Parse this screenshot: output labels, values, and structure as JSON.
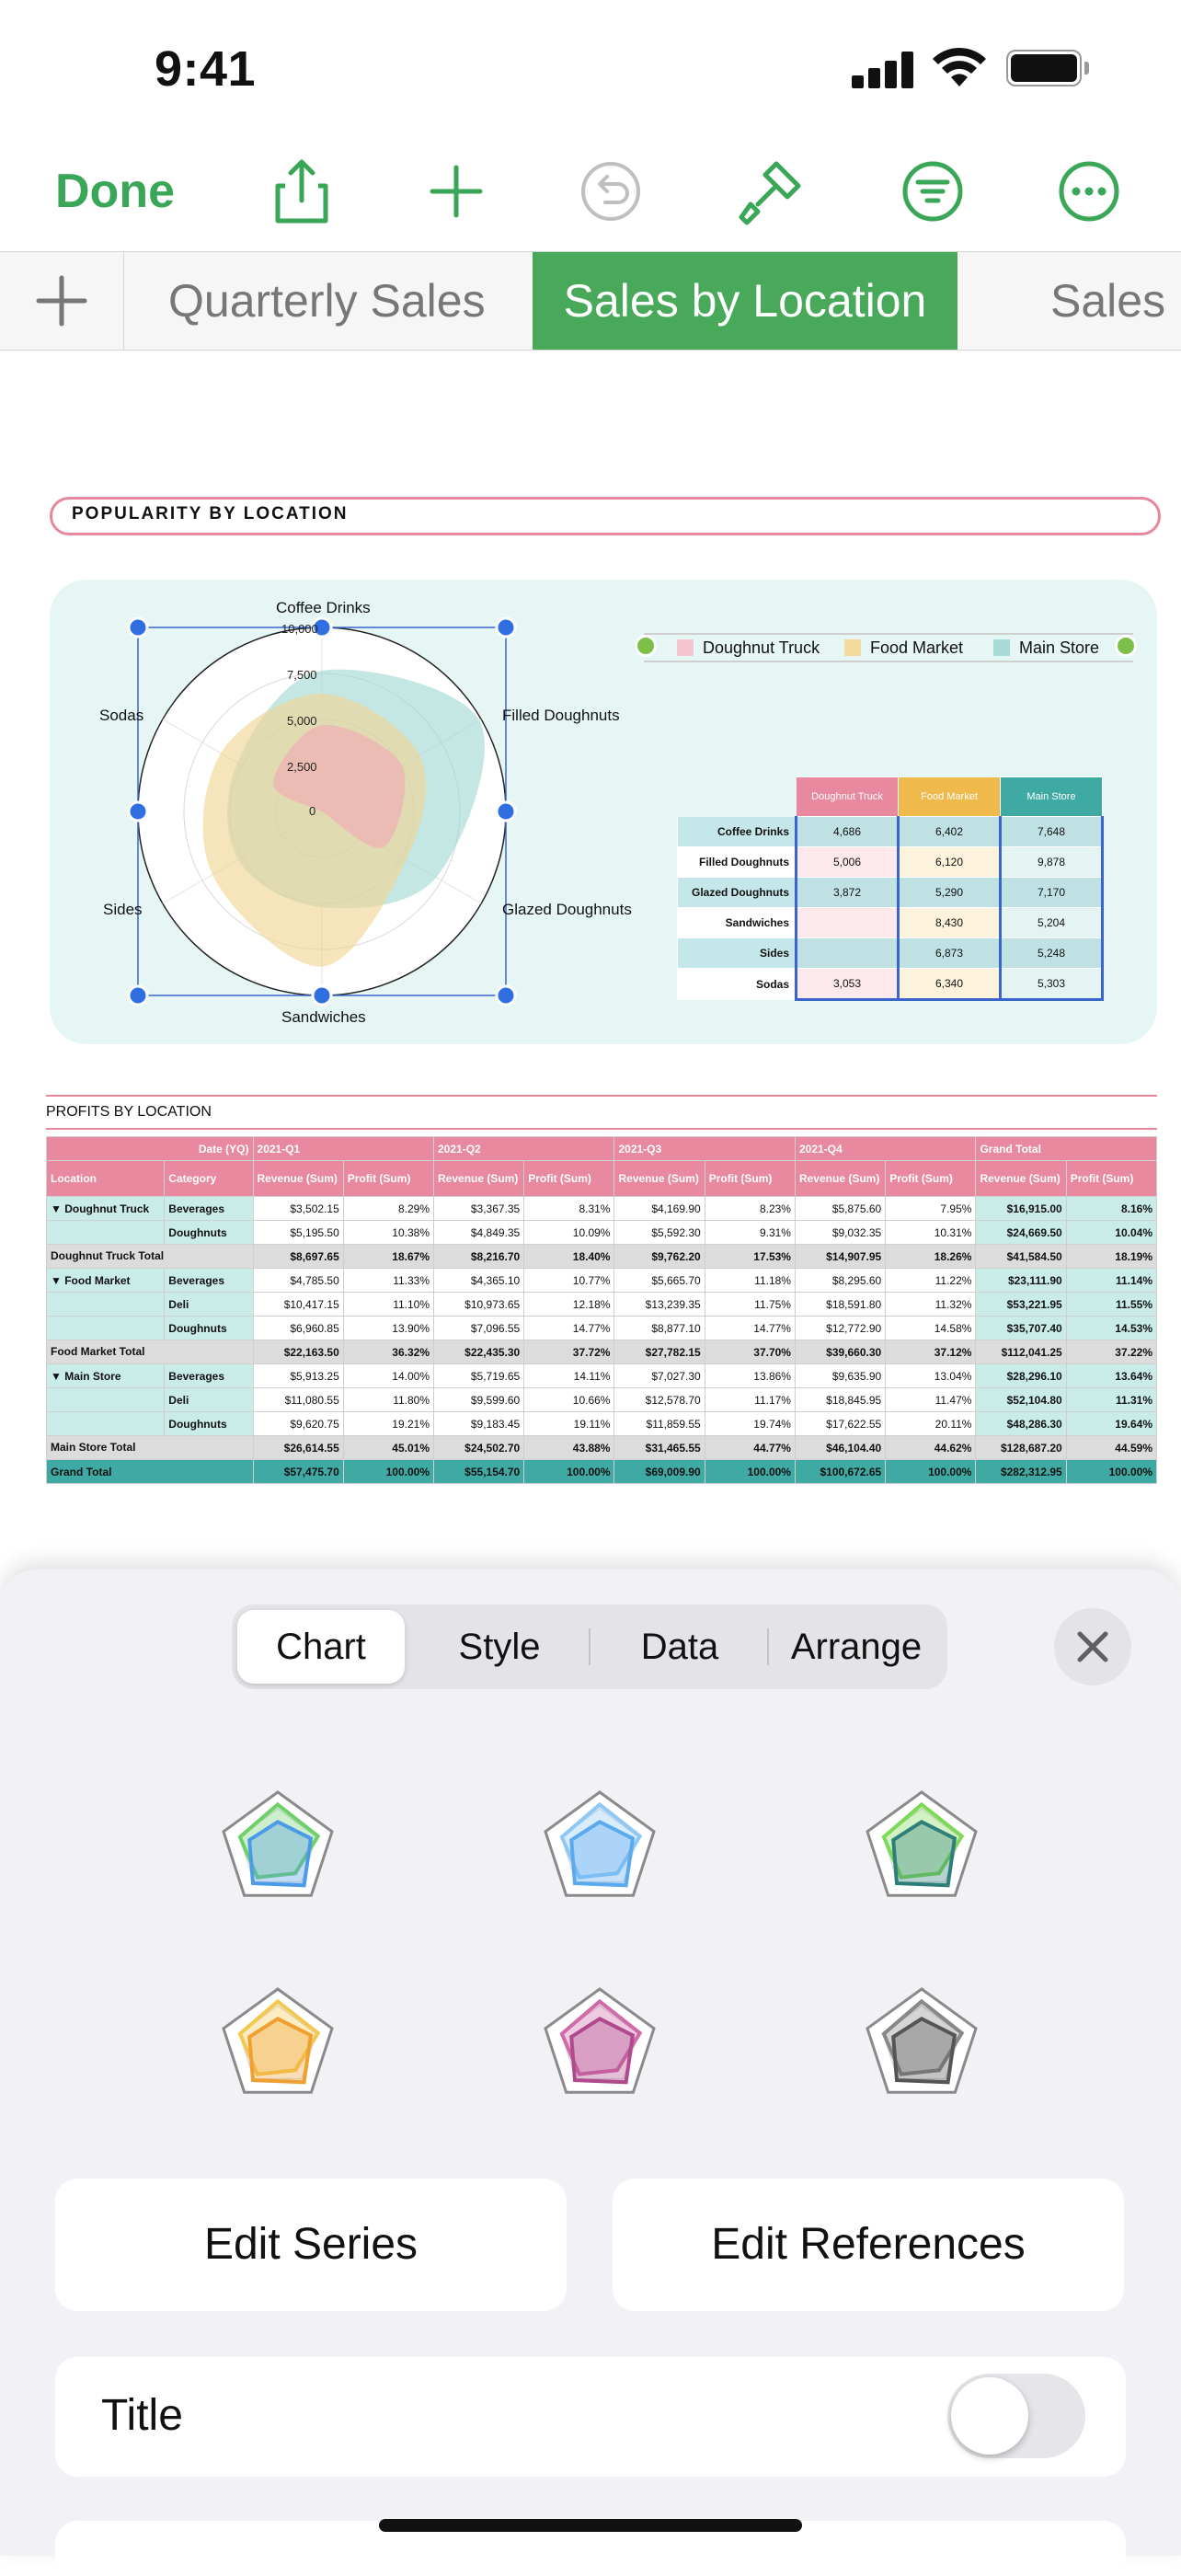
{
  "status": {
    "time": "9:41"
  },
  "toolbar": {
    "done_label": "Done",
    "icons": [
      "share-icon",
      "add-icon",
      "undo-icon",
      "format-brush-icon",
      "organize-icon",
      "more-icon"
    ],
    "accent": "#3aa657"
  },
  "tabs": {
    "add_icon": "plus-icon",
    "items": [
      {
        "label": "Quarterly Sales",
        "active": false
      },
      {
        "label": "Sales by Location",
        "active": true
      },
      {
        "label": "Sales by",
        "active": false
      }
    ]
  },
  "popularity": {
    "title": "POPULARITY BY LOCATION",
    "chart": {
      "axes": [
        "Coffee Drinks",
        "Filled Doughnuts",
        "Glazed Doughnuts",
        "Sandwiches",
        "Sides",
        "Sodas"
      ],
      "ticks": [
        "0",
        "2,500",
        "5,000",
        "7,500",
        "10,000"
      ],
      "legend": [
        {
          "name": "Doughnut Truck",
          "color": "#f2c5cf"
        },
        {
          "name": "Food Market",
          "color": "#f3dba0"
        },
        {
          "name": "Main Store",
          "color": "#a8dcd8"
        }
      ]
    },
    "table": {
      "headers": [
        "Doughnut Truck",
        "Food Market",
        "Main Store"
      ],
      "rows": [
        {
          "label": "Coffee Drinks",
          "values": [
            "4,686",
            "6,402",
            "7,648"
          ]
        },
        {
          "label": "Filled Doughnuts",
          "values": [
            "5,006",
            "6,120",
            "9,878"
          ]
        },
        {
          "label": "Glazed Doughnuts",
          "values": [
            "3,872",
            "5,290",
            "7,170"
          ]
        },
        {
          "label": "Sandwiches",
          "values": [
            "",
            "8,430",
            "5,204"
          ]
        },
        {
          "label": "Sides",
          "values": [
            "",
            "6,873",
            "5,248"
          ]
        },
        {
          "label": "Sodas",
          "values": [
            "3,053",
            "6,340",
            "5,303"
          ]
        }
      ]
    }
  },
  "chart_data": {
    "type": "radar",
    "categories": [
      "Coffee Drinks",
      "Filled Doughnuts",
      "Glazed Doughnuts",
      "Sandwiches",
      "Sides",
      "Sodas"
    ],
    "rlim": [
      0,
      10000
    ],
    "series": [
      {
        "name": "Doughnut Truck",
        "values": [
          4686,
          5006,
          3872,
          0,
          0,
          3053
        ],
        "color": "#f2a9b6"
      },
      {
        "name": "Food Market",
        "values": [
          6402,
          6120,
          5290,
          8430,
          6873,
          6340
        ],
        "color": "#f1d48f"
      },
      {
        "name": "Main Store",
        "values": [
          7648,
          9878,
          7170,
          5204,
          5248,
          5303
        ],
        "color": "#9fd9d4"
      }
    ],
    "legend": "top-right"
  },
  "profits": {
    "title": "PROFITS BY LOCATION",
    "header1": {
      "date_label": "Date (YQ)",
      "periods": [
        "2021-Q1",
        "2021-Q2",
        "2021-Q3",
        "2021-Q4",
        "Grand Total"
      ]
    },
    "header2": {
      "location": "Location",
      "category": "Category",
      "revenue": "Revenue (Sum)",
      "profit": "Profit (Sum)"
    },
    "groups": [
      {
        "location": "▼ Doughnut Truck",
        "rows": [
          {
            "category": "Beverages",
            "cells": [
              "$3,502.15",
              "8.29%",
              "$3,367.35",
              "8.31%",
              "$4,169.90",
              "8.23%",
              "$5,875.60",
              "7.95%",
              "$16,915.00",
              "8.16%"
            ]
          },
          {
            "category": "Doughnuts",
            "cells": [
              "$5,195.50",
              "10.38%",
              "$4,849.35",
              "10.09%",
              "$5,592.30",
              "9.31%",
              "$9,032.35",
              "10.31%",
              "$24,669.50",
              "10.04%"
            ]
          }
        ],
        "total_label": "Doughnut Truck Total",
        "total": [
          "$8,697.65",
          "18.67%",
          "$8,216.70",
          "18.40%",
          "$9,762.20",
          "17.53%",
          "$14,907.95",
          "18.26%",
          "$41,584.50",
          "18.19%"
        ]
      },
      {
        "location": "▼ Food Market",
        "rows": [
          {
            "category": "Beverages",
            "cells": [
              "$4,785.50",
              "11.33%",
              "$4,365.10",
              "10.77%",
              "$5,665.70",
              "11.18%",
              "$8,295.60",
              "11.22%",
              "$23,111.90",
              "11.14%"
            ]
          },
          {
            "category": "Deli",
            "cells": [
              "$10,417.15",
              "11.10%",
              "$10,973.65",
              "12.18%",
              "$13,239.35",
              "11.75%",
              "$18,591.80",
              "11.32%",
              "$53,221.95",
              "11.55%"
            ]
          },
          {
            "category": "Doughnuts",
            "cells": [
              "$6,960.85",
              "13.90%",
              "$7,096.55",
              "14.77%",
              "$8,877.10",
              "14.77%",
              "$12,772.90",
              "14.58%",
              "$35,707.40",
              "14.53%"
            ]
          }
        ],
        "total_label": "Food Market Total",
        "total": [
          "$22,163.50",
          "36.32%",
          "$22,435.30",
          "37.72%",
          "$27,782.15",
          "37.70%",
          "$39,660.30",
          "37.12%",
          "$112,041.25",
          "37.22%"
        ]
      },
      {
        "location": "▼ Main Store",
        "rows": [
          {
            "category": "Beverages",
            "cells": [
              "$5,913.25",
              "14.00%",
              "$5,719.65",
              "14.11%",
              "$7,027.30",
              "13.86%",
              "$9,635.90",
              "13.04%",
              "$28,296.10",
              "13.64%"
            ]
          },
          {
            "category": "Deli",
            "cells": [
              "$11,080.55",
              "11.80%",
              "$9,599.60",
              "10.66%",
              "$12,578.70",
              "11.17%",
              "$18,845.95",
              "11.47%",
              "$52,104.80",
              "11.31%"
            ]
          },
          {
            "category": "Doughnuts",
            "cells": [
              "$9,620.75",
              "19.21%",
              "$9,183.45",
              "19.11%",
              "$11,859.55",
              "19.74%",
              "$17,622.55",
              "20.11%",
              "$48,286.30",
              "19.64%"
            ]
          }
        ],
        "total_label": "Main Store Total",
        "total": [
          "$26,614.55",
          "45.01%",
          "$24,502.70",
          "43.88%",
          "$31,465.55",
          "44.77%",
          "$46,104.40",
          "44.62%",
          "$128,687.20",
          "44.59%"
        ]
      }
    ],
    "grand_label": "Grand Total",
    "grand": [
      "$57,475.70",
      "100.00%",
      "$55,154.70",
      "100.00%",
      "$69,009.90",
      "100.00%",
      "$100,672.65",
      "100.00%",
      "$282,312.95",
      "100.00%"
    ]
  },
  "panel": {
    "segments": [
      {
        "label": "Chart",
        "active": true
      },
      {
        "label": "Style",
        "active": false
      },
      {
        "label": "Data",
        "active": false
      },
      {
        "label": "Arrange",
        "active": false
      }
    ],
    "close_icon": "close-icon",
    "styles": [
      {
        "name": "radar-style-1",
        "colors": [
          "#4c9be8",
          "#6fd06a",
          "#9a9a9a"
        ]
      },
      {
        "name": "radar-style-2",
        "colors": [
          "#5aaaf0",
          "#8fc8f5",
          "#b0b0b0"
        ]
      },
      {
        "name": "radar-style-3",
        "colors": [
          "#2e7f7a",
          "#7ed957",
          "#9a9a9a"
        ]
      },
      {
        "name": "radar-style-4",
        "colors": [
          "#f0a030",
          "#f3c850",
          "#9a9a9a"
        ]
      },
      {
        "name": "radar-style-5",
        "colors": [
          "#b04a8c",
          "#d06aa8",
          "#9a9a9a"
        ]
      },
      {
        "name": "radar-style-6",
        "colors": [
          "#555555",
          "#888888",
          "#b0b0b0"
        ]
      }
    ],
    "edit_series_label": "Edit Series",
    "edit_references_label": "Edit References",
    "title_label": "Title",
    "title_toggle_on": false
  }
}
